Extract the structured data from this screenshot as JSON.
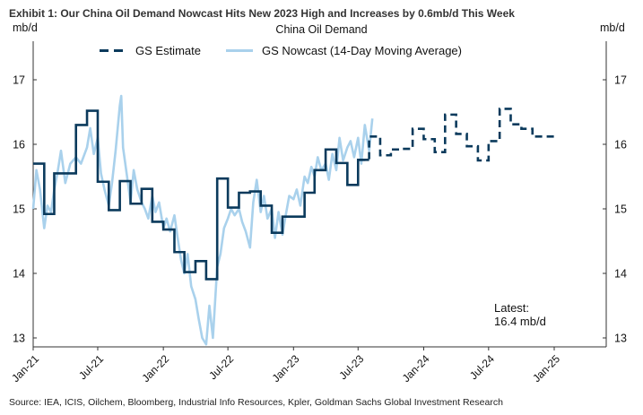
{
  "exhibit_title": "Exhibit 1: Our China Oil Demand Nowcast Hits New 2023 High and Increases by 0.6mb/d This Week",
  "source": "Source: IEA, ICIS, Oilchem, Bloomberg, Industrial Info Resources, Kpler, Goldman Sachs Global Investment Research",
  "annotation": {
    "line1": "Latest:",
    "line2": "16.4 mb/d"
  },
  "colors": {
    "estimate": "#0b3a5c",
    "nowcast": "#a9d1ec"
  },
  "chart_data": {
    "type": "line",
    "title": "China Oil Demand",
    "ylabel_left": "mb/d",
    "ylabel_right": "mb/d",
    "ylim": [
      12.85,
      17.6
    ],
    "yticks": [
      13,
      14,
      15,
      16,
      17
    ],
    "xlim": [
      "2021-01",
      "2025-09"
    ],
    "xticks": [
      "Jan-21",
      "Jul-21",
      "Jan-22",
      "Jul-22",
      "Jan-23",
      "Jul-23",
      "Jan-24",
      "Jul-24",
      "Jan-25"
    ],
    "legend_position": "top",
    "series": [
      {
        "name": "GS Estimate",
        "style": "step",
        "color": "#0b3a5c",
        "months": [
          "2021-01",
          "2021-02",
          "2021-03",
          "2021-04",
          "2021-05",
          "2021-06",
          "2021-07",
          "2021-08",
          "2021-09",
          "2021-10",
          "2021-11",
          "2021-12",
          "2022-01",
          "2022-02",
          "2022-03",
          "2022-04",
          "2022-05",
          "2022-06",
          "2022-07",
          "2022-08",
          "2022-09",
          "2022-10",
          "2022-11",
          "2022-12",
          "2023-01",
          "2023-02",
          "2023-03",
          "2023-04",
          "2023-05",
          "2023-06",
          "2023-07",
          "2023-08",
          "2023-09",
          "2023-10",
          "2023-11",
          "2023-12",
          "2024-01",
          "2024-02",
          "2024-03",
          "2024-04",
          "2024-05",
          "2024-06",
          "2024-07",
          "2024-08",
          "2024-09",
          "2024-10",
          "2024-11",
          "2024-12"
        ],
        "values": [
          15.7,
          14.92,
          15.55,
          15.55,
          16.3,
          16.52,
          15.42,
          14.98,
          15.43,
          15.08,
          15.31,
          14.8,
          14.68,
          14.33,
          14.02,
          14.19,
          13.91,
          15.47,
          15.02,
          15.25,
          15.27,
          15.05,
          14.63,
          14.88,
          14.88,
          15.25,
          15.6,
          15.92,
          15.71,
          15.37,
          15.76,
          16.12,
          15.83,
          15.92,
          15.93,
          16.24,
          16.08,
          15.88,
          16.46,
          16.16,
          15.97,
          15.75,
          16.05,
          16.55,
          16.31,
          16.24,
          16.12,
          16.12
        ],
        "forecast_from": "2023-08"
      },
      {
        "name": "GS Nowcast (14-Day Moving Average)",
        "style": "line",
        "color": "#a9d1ec",
        "dates": [
          "2021-01-01",
          "2021-01-10",
          "2021-01-20",
          "2021-02-01",
          "2021-02-10",
          "2021-02-20",
          "2021-03-01",
          "2021-03-10",
          "2021-03-20",
          "2021-04-01",
          "2021-04-15",
          "2021-05-01",
          "2021-05-15",
          "2021-06-01",
          "2021-06-10",
          "2021-06-20",
          "2021-07-01",
          "2021-07-10",
          "2021-07-20",
          "2021-08-01",
          "2021-08-10",
          "2021-08-20",
          "2021-09-01",
          "2021-09-05",
          "2021-09-10",
          "2021-09-20",
          "2021-10-01",
          "2021-10-10",
          "2021-10-20",
          "2021-11-01",
          "2021-11-10",
          "2021-11-20",
          "2021-12-01",
          "2021-12-10",
          "2021-12-20",
          "2022-01-01",
          "2022-01-10",
          "2022-01-20",
          "2022-02-01",
          "2022-02-10",
          "2022-02-20",
          "2022-03-01",
          "2022-03-10",
          "2022-03-20",
          "2022-04-01",
          "2022-04-10",
          "2022-04-20",
          "2022-05-01",
          "2022-05-10",
          "2022-05-20",
          "2022-06-01",
          "2022-06-10",
          "2022-06-20",
          "2022-07-01",
          "2022-07-10",
          "2022-07-20",
          "2022-08-01",
          "2022-08-10",
          "2022-08-20",
          "2022-09-01",
          "2022-09-10",
          "2022-09-20",
          "2022-10-01",
          "2022-10-10",
          "2022-10-20",
          "2022-11-01",
          "2022-11-10",
          "2022-11-20",
          "2022-12-01",
          "2022-12-10",
          "2022-12-20",
          "2023-01-01",
          "2023-01-10",
          "2023-01-20",
          "2023-02-01",
          "2023-02-10",
          "2023-02-20",
          "2023-03-01",
          "2023-03-10",
          "2023-03-20",
          "2023-04-01",
          "2023-04-10",
          "2023-04-20",
          "2023-05-01",
          "2023-05-10",
          "2023-05-20",
          "2023-06-01",
          "2023-06-10",
          "2023-06-20",
          "2023-07-01",
          "2023-07-10",
          "2023-07-20",
          "2023-08-01",
          "2023-08-10"
        ],
        "values": [
          15.0,
          15.6,
          15.3,
          14.7,
          15.05,
          14.95,
          15.3,
          15.55,
          15.9,
          15.4,
          15.7,
          15.8,
          15.7,
          15.95,
          16.25,
          15.85,
          16.1,
          15.55,
          15.3,
          15.05,
          15.4,
          15.9,
          16.6,
          16.75,
          15.95,
          15.55,
          15.1,
          15.6,
          15.3,
          15.1,
          15.0,
          14.85,
          15.2,
          14.95,
          15.1,
          14.7,
          14.85,
          14.65,
          14.9,
          14.55,
          14.2,
          14.0,
          14.3,
          13.8,
          13.6,
          13.3,
          13.0,
          12.9,
          13.5,
          13.0,
          14.1,
          14.3,
          14.7,
          14.85,
          15.0,
          14.9,
          15.0,
          14.8,
          14.65,
          14.4,
          15.1,
          15.45,
          14.95,
          15.2,
          14.85,
          15.0,
          14.55,
          14.95,
          14.6,
          14.9,
          15.2,
          15.15,
          15.3,
          15.05,
          15.5,
          15.4,
          15.65,
          15.5,
          15.8,
          15.6,
          15.7,
          15.45,
          15.85,
          15.6,
          16.1,
          15.75,
          15.95,
          16.05,
          15.8,
          16.1,
          15.7,
          16.3,
          15.9,
          16.4
        ]
      }
    ]
  }
}
